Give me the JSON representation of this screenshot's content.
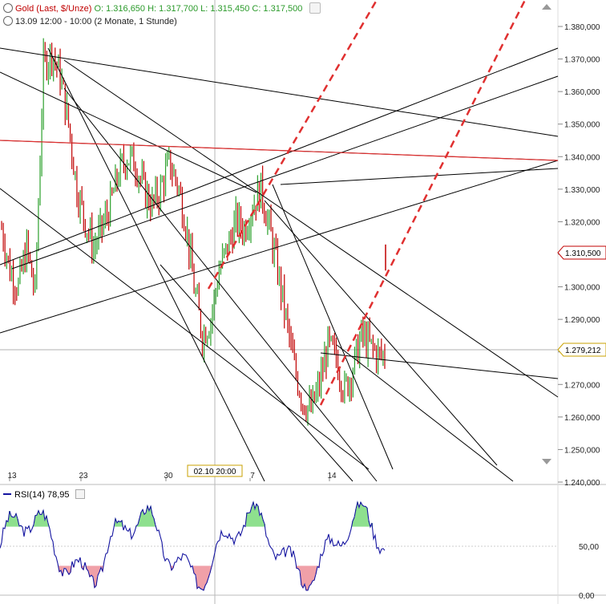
{
  "header": {
    "instrument": "Gold (Last, $/Unze)",
    "ohlc": "O: 1.316,650  H: 1.317,700  L: 1.315,450  C: 1.317,500",
    "range": "13.09 12:00 - 10:00 (2 Monate, 1 Stunde)"
  },
  "colors": {
    "up": "#2ca02c",
    "down": "#c00000",
    "trendline": "#000000",
    "redline": "#e03030",
    "rsi": "#1414a0",
    "rsi_over": "#8ee08e",
    "rsi_under": "#f0a0a8"
  },
  "chart_data": [
    {
      "type": "line",
      "name": "price",
      "y_ticks": [
        "1.380,000",
        "1.370,000",
        "1.360,000",
        "1.350,000",
        "1.340,000",
        "1.330,000",
        "1.320,000",
        "1.310,000",
        "1.300,000",
        "1.290,000",
        "1.280,000",
        "1.270,000",
        "1.260,000",
        "1.250,000",
        "1.240,000"
      ],
      "ylim": [
        1240,
        1380
      ],
      "x_ticks": [
        "13",
        "23",
        "30",
        "7",
        "14"
      ],
      "crosshair_date": "02.10 20:00",
      "last_price_label": "1.310,500",
      "cursor_price_label": "1.279,212",
      "approx_closes": [
        1318,
        1305,
        1300,
        1312,
        1298,
        1368,
        1372,
        1365,
        1350,
        1330,
        1320,
        1312,
        1318,
        1325,
        1335,
        1340,
        1338,
        1330,
        1325,
        1330,
        1338,
        1332,
        1320,
        1300,
        1285,
        1290,
        1305,
        1312,
        1320,
        1318,
        1325,
        1330,
        1318,
        1305,
        1290,
        1275,
        1265,
        1262,
        1270,
        1282,
        1278,
        1268,
        1275,
        1285,
        1282,
        1279
      ]
    },
    {
      "type": "line",
      "name": "RSI(14)",
      "legend": "RSI(14)",
      "legend_value": "78,95",
      "y_ticks": [
        "50,00",
        "0,00"
      ],
      "ylim": [
        0,
        100
      ]
    }
  ]
}
